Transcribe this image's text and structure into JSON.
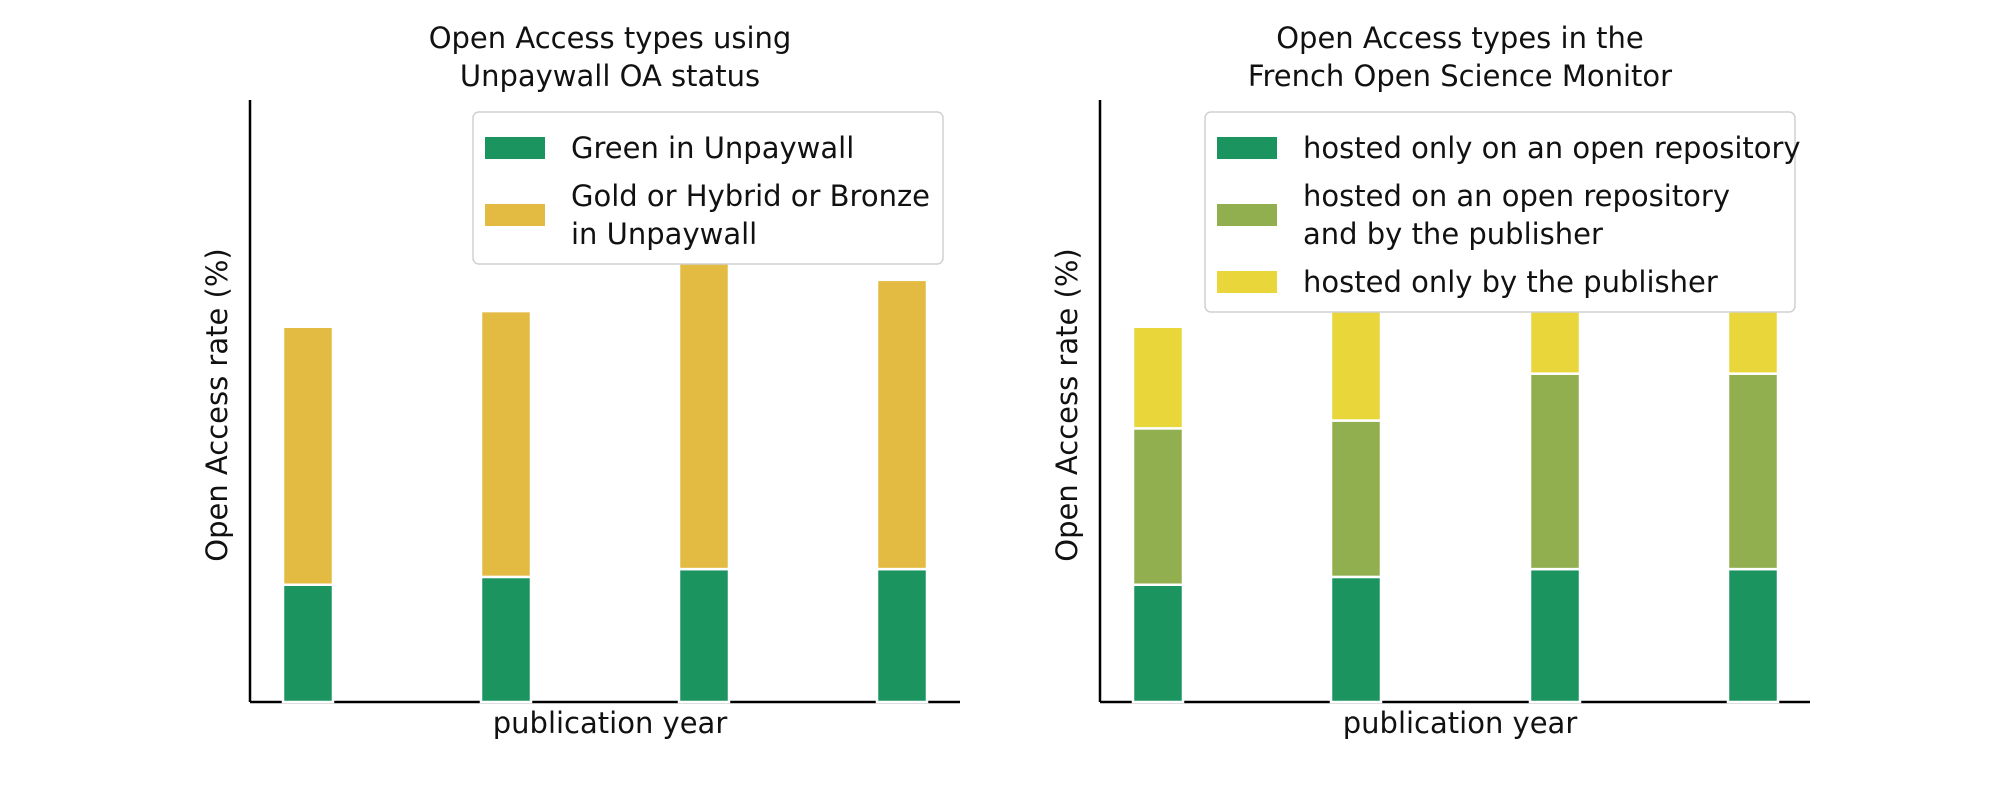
{
  "chart_data": [
    {
      "type": "bar",
      "stacked": true,
      "title": [
        "Open Access types using",
        "Unpaywall OA status"
      ],
      "xlabel": "publication year",
      "ylabel": "Open Access rate (%)",
      "categories": [
        "",
        "",
        "",
        ""
      ],
      "ylim": [
        0,
        100
      ],
      "grid": false,
      "legend_position": "top-right",
      "series": [
        {
          "name": "Green in Unpaywall",
          "color": "#1b9460",
          "values": [
            15,
            16,
            17,
            17
          ]
        },
        {
          "name": [
            "Gold or Hybrid or Bronze",
            "in Unpaywall"
          ],
          "color": "#e3bb42",
          "values": [
            33,
            34,
            42,
            37
          ]
        }
      ]
    },
    {
      "type": "bar",
      "stacked": true,
      "title": [
        "Open Access types in the",
        "French Open Science Monitor"
      ],
      "xlabel": "publication year",
      "ylabel": "Open Access rate (%)",
      "categories": [
        "",
        "",
        "",
        ""
      ],
      "ylim": [
        0,
        100
      ],
      "grid": false,
      "legend_position": "top-right",
      "series": [
        {
          "name": "hosted only on an open repository",
          "color": "#1b9460",
          "values": [
            15,
            16,
            17,
            17
          ]
        },
        {
          "name": [
            "hosted on an open repository",
            "and by the publisher"
          ],
          "color": "#92af4f",
          "values": [
            20,
            20,
            25,
            25
          ]
        },
        {
          "name": "hosted only by the publisher",
          "color": "#e8d63a",
          "values": [
            13,
            14,
            17,
            12
          ]
        }
      ]
    }
  ]
}
